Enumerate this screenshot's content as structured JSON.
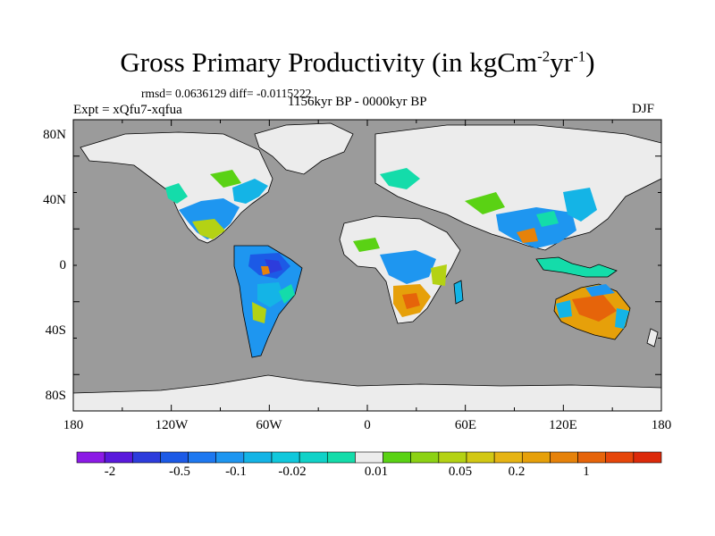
{
  "title": {
    "text": "Gross Primary Productivity (in kgCm",
    "sup1": "-2",
    "mid": "yr",
    "sup2": "-1",
    "end": ")"
  },
  "stats": "rmsd= 0.0636129 diff= -0.0115222",
  "expt": "Expt = xQfu7-xqfua",
  "period": "1156kyr BP - 0000kyr BP",
  "season": "DJF",
  "lat_ticks": [
    "80N",
    "40N",
    "0",
    "40S",
    "80S"
  ],
  "lon_ticks": [
    "180",
    "120W",
    "60W",
    "0",
    "60E",
    "120E",
    "180"
  ],
  "colors": {
    "ocean": "#9b9b9b",
    "no_data_land": "#ececec"
  },
  "colorbar": {
    "colors": [
      "#8c1be6",
      "#5a19dc",
      "#2d3cdc",
      "#1c5ae6",
      "#1e78f0",
      "#1e96f0",
      "#14b4e6",
      "#10c8dc",
      "#10d2c8",
      "#14dcaa",
      "#ececec",
      "#5ad214",
      "#8cd214",
      "#b4d214",
      "#d2c814",
      "#e6b414",
      "#e6a00a",
      "#e6820a",
      "#e6640a",
      "#e6460a",
      "#dc2a0a"
    ],
    "labels": [
      "-2",
      "-0.5",
      "-0.1",
      "-0.02",
      "0.01",
      "0.05",
      "0.2",
      "1"
    ]
  }
}
